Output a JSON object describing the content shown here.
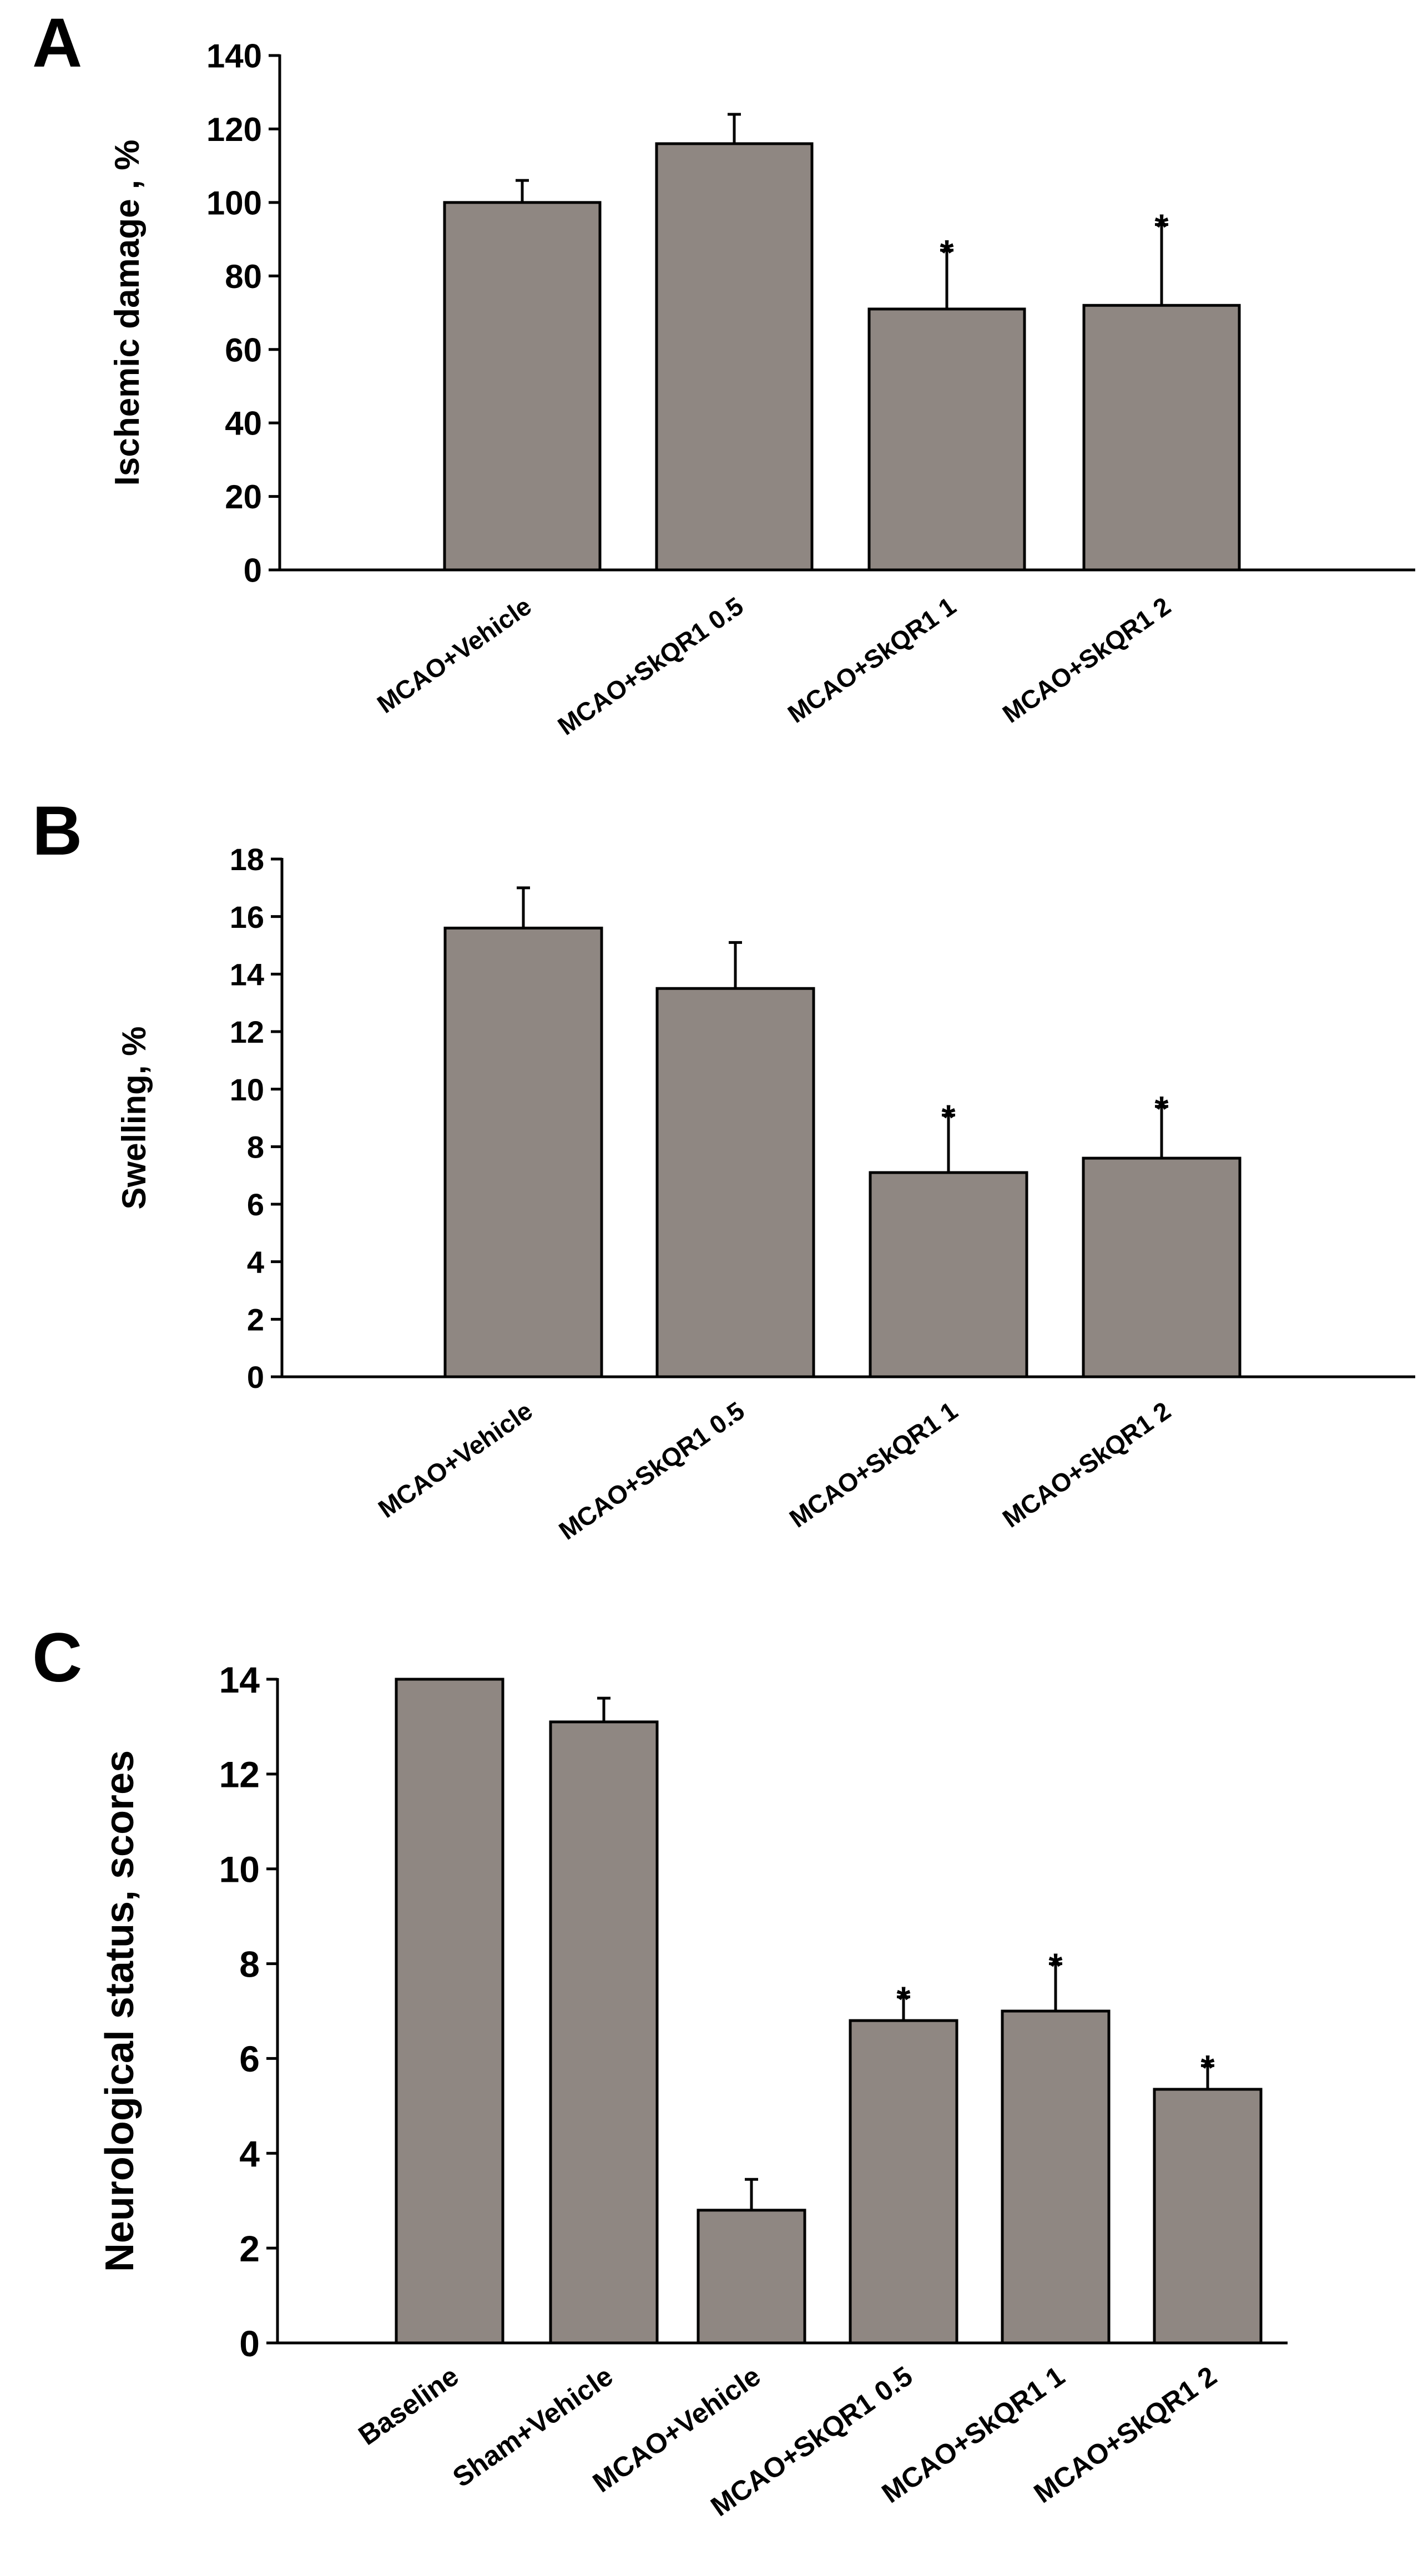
{
  "chart_data": [
    {
      "type": "bar",
      "panel_label": "A",
      "ylabel": "Ischemic damage , %",
      "xlabel": "",
      "ylim": [
        0,
        140
      ],
      "yticks": [
        0,
        20,
        40,
        60,
        80,
        100,
        120,
        140
      ],
      "categories": [
        "MCAO+Vehicle",
        "MCAO+SkQR1 0.5",
        "MCAO+SkQR1 1",
        "MCAO+SkQR1 2"
      ],
      "values": [
        100,
        116,
        71,
        72
      ],
      "errors": [
        6,
        8,
        16,
        22
      ],
      "significance": [
        "",
        "",
        "*",
        "*"
      ],
      "bar_color": "#8f8782"
    },
    {
      "type": "bar",
      "panel_label": "B",
      "ylabel": "Swelling, %",
      "xlabel": "",
      "ylim": [
        0,
        18
      ],
      "yticks": [
        0,
        2,
        4,
        6,
        8,
        10,
        12,
        14,
        16,
        18
      ],
      "categories": [
        "MCAO+Vehicle",
        "MCAO+SkQR1 0.5",
        "MCAO+SkQR1 1",
        "MCAO+SkQR1 2"
      ],
      "values": [
        15.6,
        13.5,
        7.1,
        7.6
      ],
      "errors": [
        1.4,
        1.6,
        2.0,
        1.8
      ],
      "significance": [
        "",
        "",
        "*",
        "*"
      ],
      "bar_color": "#8f8782"
    },
    {
      "type": "bar",
      "panel_label": "C",
      "ylabel": "Neurological status, scores",
      "xlabel": "",
      "ylim": [
        0,
        14
      ],
      "yticks": [
        0,
        2,
        4,
        6,
        8,
        10,
        12,
        14
      ],
      "categories": [
        "Baseline",
        "Sham+Vehicle",
        "MCAO+Vehicle",
        "MCAO+SkQR1 0.5",
        "MCAO+SkQR1 1",
        "MCAO+SkQR1 2"
      ],
      "values": [
        14,
        13.1,
        2.8,
        6.8,
        7.0,
        5.35
      ],
      "errors": [
        0,
        0.5,
        0.65,
        0.5,
        1.0,
        0.5
      ],
      "significance": [
        "",
        "",
        "",
        "*",
        "*",
        "*"
      ],
      "bar_color": "#8f8782"
    }
  ]
}
